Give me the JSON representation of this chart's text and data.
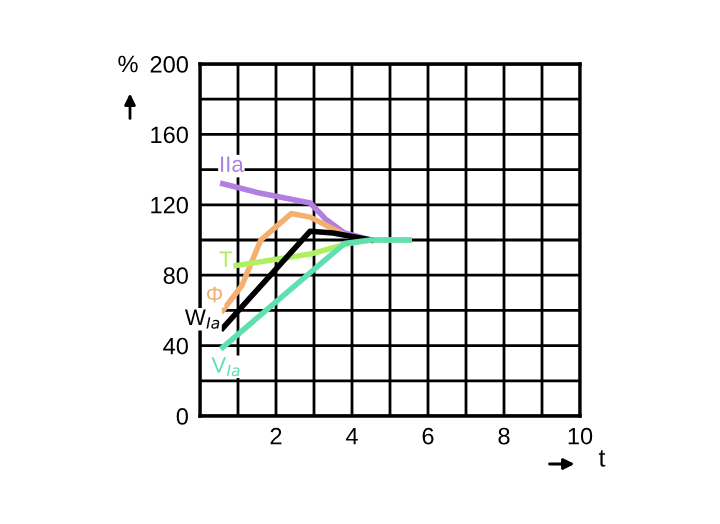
{
  "chart_data": {
    "type": "line",
    "xlabel": "t",
    "ylabel": "%",
    "xlim": [
      0,
      10
    ],
    "ylim": [
      0,
      200
    ],
    "xticks": [
      {
        "value": 0,
        "label": null
      },
      {
        "value": 1,
        "label": null
      },
      2,
      {
        "value": 3,
        "label": null
      },
      4,
      {
        "value": 5,
        "label": null
      },
      6,
      {
        "value": 7,
        "label": null
      },
      8,
      {
        "value": 9,
        "label": null
      },
      10
    ],
    "yticks": [
      0,
      {
        "value": 20,
        "label": null
      },
      40,
      {
        "value": 60,
        "label": null
      },
      80,
      {
        "value": 100,
        "label": null
      },
      120,
      {
        "value": 140,
        "label": null
      },
      160,
      {
        "value": 180,
        "label": null
      },
      200
    ],
    "grid": true,
    "marker": "none",
    "line_style": "solid",
    "series": [
      {
        "name": "IIa",
        "color": "#b07fe0",
        "x": [
          0.6,
          1.5,
          2.9,
          3.3,
          3.8,
          4.5
        ],
        "values": [
          132,
          127,
          121,
          112,
          104,
          100
        ]
      },
      {
        "name": "Φ",
        "color": "#f5b070",
        "x": [
          0.6,
          1.1,
          1.6,
          2.4,
          2.9,
          3.8
        ],
        "values": [
          60,
          74,
          100,
          115,
          113,
          103
        ]
      },
      {
        "name": "T",
        "color": "#b0f060",
        "x": [
          0.8,
          2.9,
          3.9,
          4.5,
          5.5
        ],
        "values": [
          85,
          92,
          98,
          100,
          100
        ]
      },
      {
        "name": "W$_{Ia}$",
        "color": "#000000",
        "x": [
          0.6,
          2.9,
          3.5,
          4.5
        ],
        "values": [
          50,
          105,
          104,
          100
        ]
      },
      {
        "name": "V$_{Ia}$",
        "color": "#60e0b0",
        "x": [
          0.6,
          3.8,
          4.5,
          5.5
        ],
        "values": [
          39,
          98,
          100,
          100
        ]
      }
    ]
  }
}
